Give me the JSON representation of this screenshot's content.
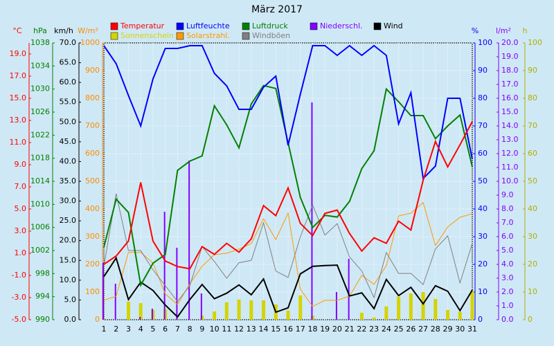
{
  "chart_data": {
    "type": "line",
    "title": "März 2017",
    "x": [
      1,
      2,
      3,
      4,
      5,
      6,
      7,
      8,
      9,
      10,
      11,
      12,
      13,
      14,
      15,
      16,
      17,
      18,
      19,
      20,
      21,
      22,
      23,
      24,
      25,
      26,
      27,
      28,
      29,
      30,
      31
    ],
    "xlim": [
      1,
      31
    ],
    "xticks": [
      1,
      2,
      3,
      4,
      5,
      6,
      7,
      8,
      9,
      10,
      11,
      12,
      13,
      14,
      15,
      16,
      17,
      18,
      19,
      20,
      21,
      22,
      23,
      24,
      25,
      26,
      27,
      28,
      29,
      30,
      31
    ],
    "grid": true,
    "axes": [
      {
        "label": "°C",
        "color": "#ff0000",
        "side": "left",
        "lim": [
          -5,
          20
        ],
        "ticks": [
          {
            "value": -5,
            "label": "-5.0"
          },
          {
            "value": -3,
            "label": "-3.0"
          },
          {
            "value": -1,
            "label": "-1.0"
          },
          {
            "value": 1,
            "label": "1.0"
          },
          {
            "value": 3,
            "label": "3.0"
          },
          {
            "value": 5,
            "label": "5.0"
          },
          {
            "value": 7,
            "label": "7.0"
          },
          {
            "value": 9,
            "label": "9.0"
          },
          {
            "value": 11,
            "label": "11.0"
          },
          {
            "value": 13,
            "label": "13.0"
          },
          {
            "value": 15,
            "label": "15.0"
          },
          {
            "value": 17,
            "label": "17.0"
          },
          {
            "value": 19,
            "label": "19.0"
          }
        ]
      },
      {
        "label": "hPa",
        "color": "#008000",
        "side": "left",
        "lim": [
          990,
          1038
        ],
        "ticks": [
          990,
          994,
          998,
          1002,
          1006,
          1010,
          1014,
          1018,
          1022,
          1026,
          1030,
          1034,
          1038
        ]
      },
      {
        "label": "km/h",
        "color": "#000000",
        "side": "left",
        "lim": [
          0,
          70
        ],
        "ticks": [
          {
            "value": 0,
            "label": "0.0"
          },
          {
            "value": 5,
            "label": "5.0"
          },
          {
            "value": 10,
            "label": "10.0"
          },
          {
            "value": 15,
            "label": "15.0"
          },
          {
            "value": 20,
            "label": "20.0"
          },
          {
            "value": 25,
            "label": "25.0"
          },
          {
            "value": 30,
            "label": "30.0"
          },
          {
            "value": 35,
            "label": "35.0"
          },
          {
            "value": 40,
            "label": "40.0"
          },
          {
            "value": 45,
            "label": "45.0"
          },
          {
            "value": 50,
            "label": "50.0"
          },
          {
            "value": 55,
            "label": "55.0"
          },
          {
            "value": 60,
            "label": "60.0"
          },
          {
            "value": 65,
            "label": "65.0"
          },
          {
            "value": 70,
            "label": "70.0"
          }
        ]
      },
      {
        "label": "W/m²",
        "color": "#ff8c00",
        "side": "left",
        "lim": [
          0,
          1000
        ],
        "ticks": [
          0,
          100,
          200,
          300,
          400,
          500,
          600,
          700,
          800,
          900,
          1000
        ]
      },
      {
        "label": "%",
        "color": "#0000ff",
        "side": "right",
        "lim": [
          0,
          100
        ],
        "ticks": [
          0,
          10,
          20,
          30,
          40,
          50,
          60,
          70,
          80,
          90,
          100
        ]
      },
      {
        "label": "l/m²",
        "color": "#8000ff",
        "side": "right",
        "lim": [
          0,
          20
        ],
        "ticks": [
          {
            "value": 0,
            "label": "0.0"
          },
          {
            "value": 1,
            "label": "1.0"
          },
          {
            "value": 2,
            "label": "2.0"
          },
          {
            "value": 3,
            "label": "3.0"
          },
          {
            "value": 4,
            "label": "4.0"
          },
          {
            "value": 5,
            "label": "5.0"
          },
          {
            "value": 6,
            "label": "6.0"
          },
          {
            "value": 7,
            "label": "7.0"
          },
          {
            "value": 8,
            "label": "8.0"
          },
          {
            "value": 9,
            "label": "9.0"
          },
          {
            "value": 10,
            "label": "10.0"
          },
          {
            "value": 11,
            "label": "11.0"
          },
          {
            "value": 12,
            "label": "12.0"
          },
          {
            "value": 13,
            "label": "13.0"
          },
          {
            "value": 14,
            "label": "14.0"
          },
          {
            "value": 15,
            "label": "15.0"
          },
          {
            "value": 16,
            "label": "16.0"
          },
          {
            "value": 17,
            "label": "17.0"
          },
          {
            "value": 18,
            "label": "18.0"
          },
          {
            "value": 19,
            "label": "19.0"
          },
          {
            "value": 20,
            "label": "20.0"
          }
        ]
      },
      {
        "label": "h",
        "color": "#b0b000",
        "side": "right",
        "lim": [
          0,
          100
        ],
        "ticks": [
          0,
          10,
          20,
          30,
          40,
          50,
          60,
          70,
          80,
          90,
          100
        ]
      }
    ],
    "series": [
      {
        "name": "Temperatur",
        "color": "#ff0000",
        "kind": "line",
        "width": 2,
        "axis": 0,
        "values": [
          0.0,
          0.75,
          2.1,
          7.4,
          2.1,
          0.3,
          -0.2,
          -0.4,
          1.6,
          0.9,
          1.9,
          1.1,
          2.3,
          5.3,
          4.4,
          6.9,
          3.7,
          2.6,
          4.6,
          4.9,
          2.8,
          1.2,
          2.4,
          1.9,
          3.9,
          3.1,
          7.6,
          11.1,
          8.8,
          10.8,
          12.9
        ]
      },
      {
        "name": "Luftfeuchte",
        "color": "#0000ff",
        "kind": "line",
        "width": 2,
        "axis": 4,
        "values": [
          99,
          92.5,
          81,
          70,
          87,
          98,
          98,
          99,
          99,
          89,
          84.5,
          76,
          76,
          84,
          88,
          63,
          81.5,
          99,
          99,
          95.5,
          99,
          95.5,
          99,
          95.5,
          70.75,
          82,
          51,
          55.5,
          80,
          80,
          58
        ]
      },
      {
        "name": "Luftdruck",
        "color": "#008000",
        "kind": "line",
        "width": 2,
        "axis": 1,
        "values": [
          1002.6,
          1010.9,
          1008.6,
          996,
          999.8,
          1001.3,
          1015.9,
          1017.5,
          1018.4,
          1027.1,
          1023.8,
          1019.8,
          1027.4,
          1030.6,
          1030.1,
          1020.7,
          1011.2,
          1006,
          1008.1,
          1007.8,
          1010.5,
          1016.2,
          1019.3,
          1030,
          1027.8,
          1025.4,
          1025.4,
          1021.4,
          1023.6,
          1025.5,
          1016.5
        ]
      },
      {
        "name": "Niederschl.",
        "color": "#8000ff",
        "kind": "bar",
        "axis": 5,
        "values": [
          4.1,
          2.6,
          0,
          0.2,
          0.8,
          7.8,
          5.2,
          11.5,
          1.9,
          0,
          0,
          0,
          0,
          0,
          0,
          0,
          0,
          15.7,
          0,
          2.0,
          4.4,
          0,
          0,
          0,
          0,
          0,
          0,
          0,
          0,
          0,
          0
        ]
      },
      {
        "name": "Wind",
        "color": "#000000",
        "kind": "line",
        "width": 2,
        "axis": 2,
        "values": [
          10.9,
          15.6,
          5.1,
          9.5,
          7.4,
          3.7,
          0.7,
          5.1,
          8.9,
          5.3,
          6.7,
          8.8,
          6.3,
          10.3,
          1.9,
          3.0,
          11.6,
          13.5,
          13.7,
          13.8,
          6.0,
          6.8,
          2.8,
          10.2,
          6.1,
          8.2,
          4.0,
          8.6,
          7.2,
          2.3,
          7.5
        ]
      },
      {
        "name": "Sonnenschein",
        "color": "#d4d400",
        "kind": "bar",
        "axis": 6,
        "values": [
          0,
          0,
          6.5,
          6,
          3.5,
          3.8,
          0,
          0,
          1.5,
          3,
          6.3,
          7.3,
          7,
          7,
          5.5,
          3.3,
          8.8,
          1.5,
          0,
          0,
          0,
          2.5,
          0.8,
          4.8,
          8.3,
          9.5,
          10,
          7.5,
          3.5,
          2.8,
          10.5
        ]
      },
      {
        "name": "Solarstrahl.",
        "color": "#ff9900",
        "kind": "line",
        "width": 1,
        "axis": 3,
        "values": [
          70,
          85,
          243,
          243,
          205,
          93,
          55,
          130,
          193,
          235,
          240,
          255,
          275,
          365,
          290,
          385,
          110,
          48,
          70,
          70,
          85,
          160,
          128,
          195,
          375,
          385,
          423,
          268,
          335,
          370,
          383
        ]
      },
      {
        "name": "Windböen",
        "color": "#808080",
        "kind": "line",
        "width": 1,
        "axis": 2,
        "values": [
          13.5,
          31.9,
          17.5,
          17.5,
          12.6,
          8.6,
          4.6,
          8.6,
          18.5,
          14.7,
          10.5,
          14.4,
          15,
          24.5,
          12.3,
          10.7,
          21,
          29,
          21.4,
          24.3,
          15.9,
          12.3,
          5.6,
          17,
          11.7,
          11.7,
          8.9,
          17.9,
          21.2,
          9.3,
          19.3
        ]
      }
    ]
  }
}
